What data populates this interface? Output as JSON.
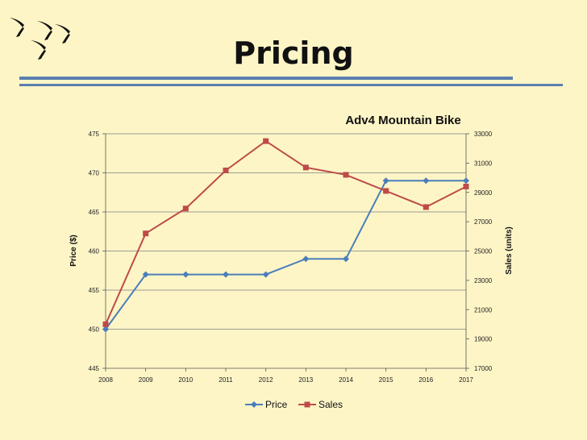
{
  "slide": {
    "title": "Pricing"
  },
  "decor": {
    "icon": "swallow-birds",
    "color": "#111111"
  },
  "chart_data": {
    "type": "line",
    "title": "Adv4 Mountain Bike",
    "x": [
      "2008",
      "2009",
      "2010",
      "2011",
      "2012",
      "2013",
      "2014",
      "2015",
      "2016",
      "2017"
    ],
    "series": [
      {
        "name": "Price",
        "axis": "left",
        "color": "#4a7ebb",
        "marker": "diamond",
        "values": [
          450,
          457,
          457,
          457,
          457,
          459,
          459,
          469,
          469,
          469
        ]
      },
      {
        "name": "Sales",
        "axis": "right",
        "color": "#be4b48",
        "marker": "square",
        "values": [
          20000,
          26200,
          27900,
          30500,
          32500,
          30700,
          30200,
          29100,
          28000,
          29400
        ]
      }
    ],
    "ylabel": "Price ($)",
    "y2label": "Sales (units)",
    "ylim": [
      445,
      475
    ],
    "y2lim": [
      17000,
      33000
    ],
    "yticks": [
      "445",
      "450",
      "455",
      "460",
      "465",
      "470",
      "475"
    ],
    "y2ticks": [
      "17000",
      "19000",
      "21000",
      "23000",
      "25000",
      "27000",
      "29000",
      "31000",
      "33000"
    ],
    "grid": true,
    "legend": "bottom"
  }
}
